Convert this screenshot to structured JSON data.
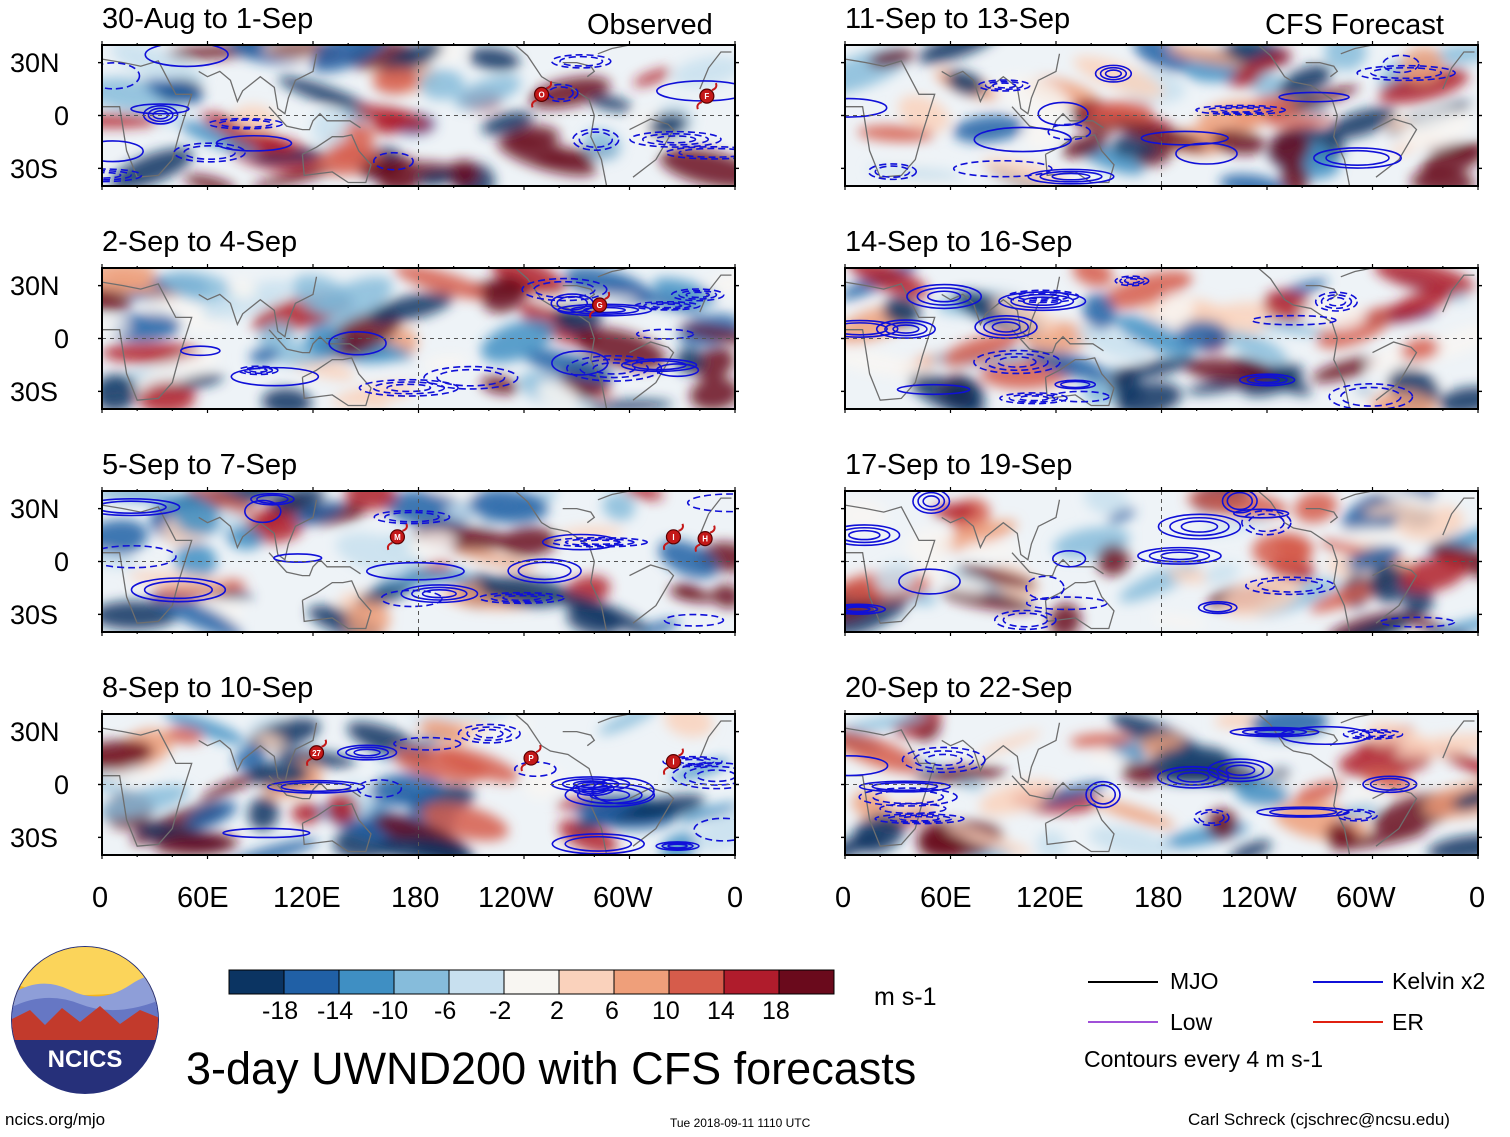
{
  "chart_data": {
    "type": "heatmap",
    "title": "3-day UWND200 with CFS forecasts",
    "variable": "UWND200",
    "units": "m s-1",
    "observed_label": "Observed",
    "forecast_label": "CFS Forecast",
    "panels": [
      {
        "period": "30-Aug to 1-Sep",
        "kind": "observed",
        "storms": [
          {
            "label": "O",
            "lon": 250,
            "lat": 12
          },
          {
            "label": "F",
            "lon": 344,
            "lat": 11
          }
        ]
      },
      {
        "period": "2-Sep to 4-Sep",
        "kind": "observed",
        "storms": [
          {
            "label": "G",
            "lon": 283,
            "lat": 19
          }
        ]
      },
      {
        "period": "5-Sep to 7-Sep",
        "kind": "observed",
        "storms": [
          {
            "label": "M",
            "lon": 168,
            "lat": 14
          },
          {
            "label": "I",
            "lon": 325,
            "lat": 14
          },
          {
            "label": "H",
            "lon": 343,
            "lat": 13
          }
        ]
      },
      {
        "period": "8-Sep to 10-Sep",
        "kind": "observed",
        "storms": [
          {
            "label": "27",
            "lon": 122,
            "lat": 18
          },
          {
            "label": "P",
            "lon": 244,
            "lat": 15
          },
          {
            "label": "I",
            "lon": 325,
            "lat": 13
          }
        ]
      },
      {
        "period": "11-Sep to 13-Sep",
        "kind": "forecast",
        "storms": []
      },
      {
        "period": "14-Sep to 16-Sep",
        "kind": "forecast",
        "storms": []
      },
      {
        "period": "17-Sep to 19-Sep",
        "kind": "forecast",
        "storms": []
      },
      {
        "period": "20-Sep to 22-Sep",
        "kind": "forecast",
        "storms": []
      }
    ],
    "y_ticks": [
      "30N",
      "0",
      "30S"
    ],
    "y_values": [
      30,
      0,
      -30
    ],
    "ylim": [
      -40,
      40
    ],
    "x_ticks": [
      "0",
      "60E",
      "120E",
      "180",
      "120W",
      "60W",
      "0"
    ],
    "x_values": [
      0,
      60,
      120,
      180,
      240,
      300,
      360
    ],
    "xlim": [
      0,
      360
    ],
    "colorbar": {
      "labels": [
        "-18",
        "-14",
        "-10",
        "-6",
        "-2",
        "2",
        "6",
        "10",
        "14",
        "18"
      ],
      "colors": [
        "#0b3462",
        "#2060a6",
        "#3f8fc3",
        "#86bcdb",
        "#c8e0ef",
        "#f8f6f2",
        "#fad2bc",
        "#ef9f7a",
        "#d65c4b",
        "#b01c2c",
        "#6a0a1c"
      ],
      "units": "m s-1"
    },
    "legend": [
      {
        "label": "MJO",
        "color": "#000000"
      },
      {
        "label": "Kelvin x2",
        "color": "#1010d8"
      },
      {
        "label": "Low",
        "color": "#a050d8"
      },
      {
        "label": "ER",
        "color": "#e02010"
      }
    ],
    "contour_note": "Contours every 4 m s-1"
  },
  "logo_text": "NCICS",
  "footer": {
    "left": "ncics.org/mjo",
    "center": "Tue 2018-09-11 1110 UTC",
    "right": "Carl Schreck (cjschrec@ncsu.edu)"
  }
}
